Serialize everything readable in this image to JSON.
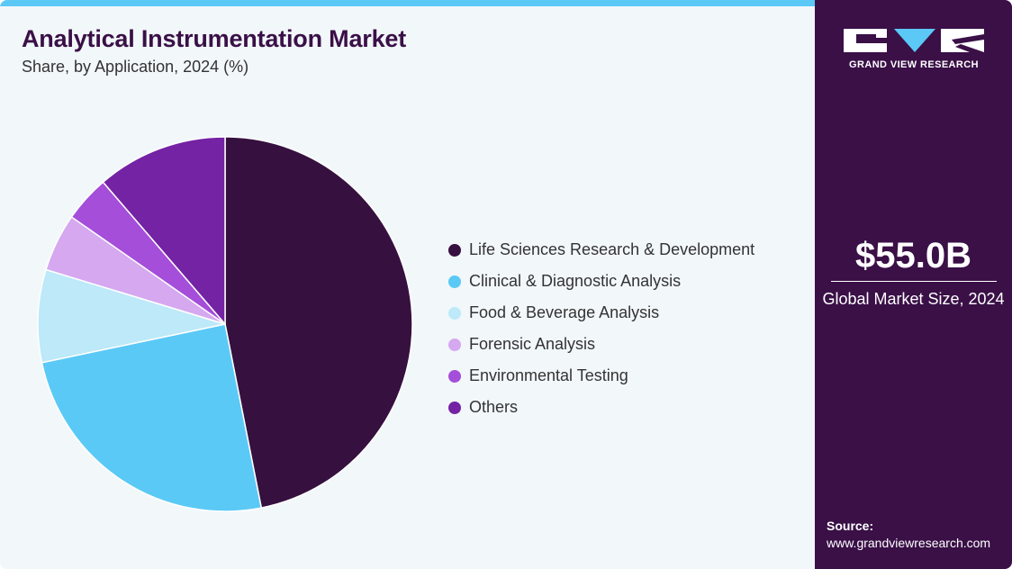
{
  "header": {
    "title": "Analytical Instrumentation Market",
    "subtitle": "Share, by Application, 2024 (%)"
  },
  "colors": {
    "accent_bar": "#5bc8f5",
    "panel": "#3a1047",
    "background": "#f2f7fa"
  },
  "chart_data": {
    "type": "pie",
    "title": "Analytical Instrumentation Market",
    "subtitle": "Share, by Application, 2024 (%)",
    "start_angle_deg": 0,
    "direction": "clockwise",
    "legend_position": "right",
    "slices": [
      {
        "label": "Life Sciences Research & Development",
        "value": 46.9,
        "color": "#36103f"
      },
      {
        "label": "Clinical & Diagnostic Analysis",
        "value": 24.8,
        "color": "#5bc9f6"
      },
      {
        "label": "Food & Beverage Analysis",
        "value": 8.0,
        "color": "#bde9f9"
      },
      {
        "label": "Forensic Analysis",
        "value": 5.0,
        "color": "#d5a8f0"
      },
      {
        "label": "Environmental Testing",
        "value": 4.0,
        "color": "#a54ed9"
      },
      {
        "label": "Others",
        "value": 11.3,
        "color": "#7323a3"
      }
    ]
  },
  "sidebar": {
    "logo_text": "GRAND VIEW RESEARCH",
    "market_value": "$55.0B",
    "market_label": "Global Market Size, 2024",
    "source_label": "Source:",
    "source_url": "www.grandviewresearch.com"
  }
}
